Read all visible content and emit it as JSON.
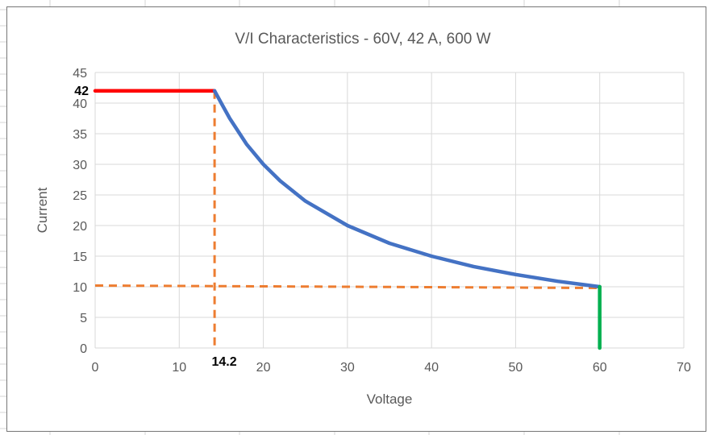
{
  "chart_data": {
    "type": "line",
    "title": "V/I Characteristics - 60V, 42 A, 600 W",
    "xlabel": "Voltage",
    "ylabel": "Current",
    "xlim": [
      0,
      70
    ],
    "ylim": [
      0,
      45
    ],
    "x_ticks": [
      0,
      10,
      20,
      30,
      40,
      50,
      60,
      70
    ],
    "y_ticks": [
      0,
      5,
      10,
      15,
      20,
      25,
      30,
      35,
      40,
      45
    ],
    "grid": true,
    "legend": "none",
    "series": [
      {
        "color": "#ff0000",
        "style": "solid",
        "points": [
          [
            0,
            42
          ],
          [
            14.2,
            42
          ]
        ]
      },
      {
        "color": "#4472c4",
        "style": "solid",
        "curve": "constant power 600 W",
        "points": [
          [
            14.2,
            42
          ],
          [
            15,
            40
          ],
          [
            16,
            37.5
          ],
          [
            18,
            33.3
          ],
          [
            20,
            30
          ],
          [
            22,
            27.3
          ],
          [
            25,
            24
          ],
          [
            30,
            20
          ],
          [
            35,
            17.1
          ],
          [
            40,
            15
          ],
          [
            45,
            13.3
          ],
          [
            50,
            12
          ],
          [
            55,
            10.9
          ],
          [
            60,
            10
          ]
        ]
      },
      {
        "color": "#00b050",
        "style": "solid",
        "points": [
          [
            60,
            10
          ],
          [
            60,
            0
          ]
        ]
      },
      {
        "color": "#ed7d31",
        "style": "dashed",
        "points": [
          [
            14.2,
            42
          ],
          [
            14.2,
            0
          ]
        ]
      },
      {
        "color": "#ed7d31",
        "style": "dashed",
        "points": [
          [
            0,
            10.2
          ],
          [
            60,
            9.8
          ]
        ]
      }
    ],
    "annotations": [
      {
        "text": "42",
        "x": 0,
        "y": 42
      },
      {
        "text": "14.2",
        "x": 14.2,
        "y": 0
      }
    ]
  }
}
